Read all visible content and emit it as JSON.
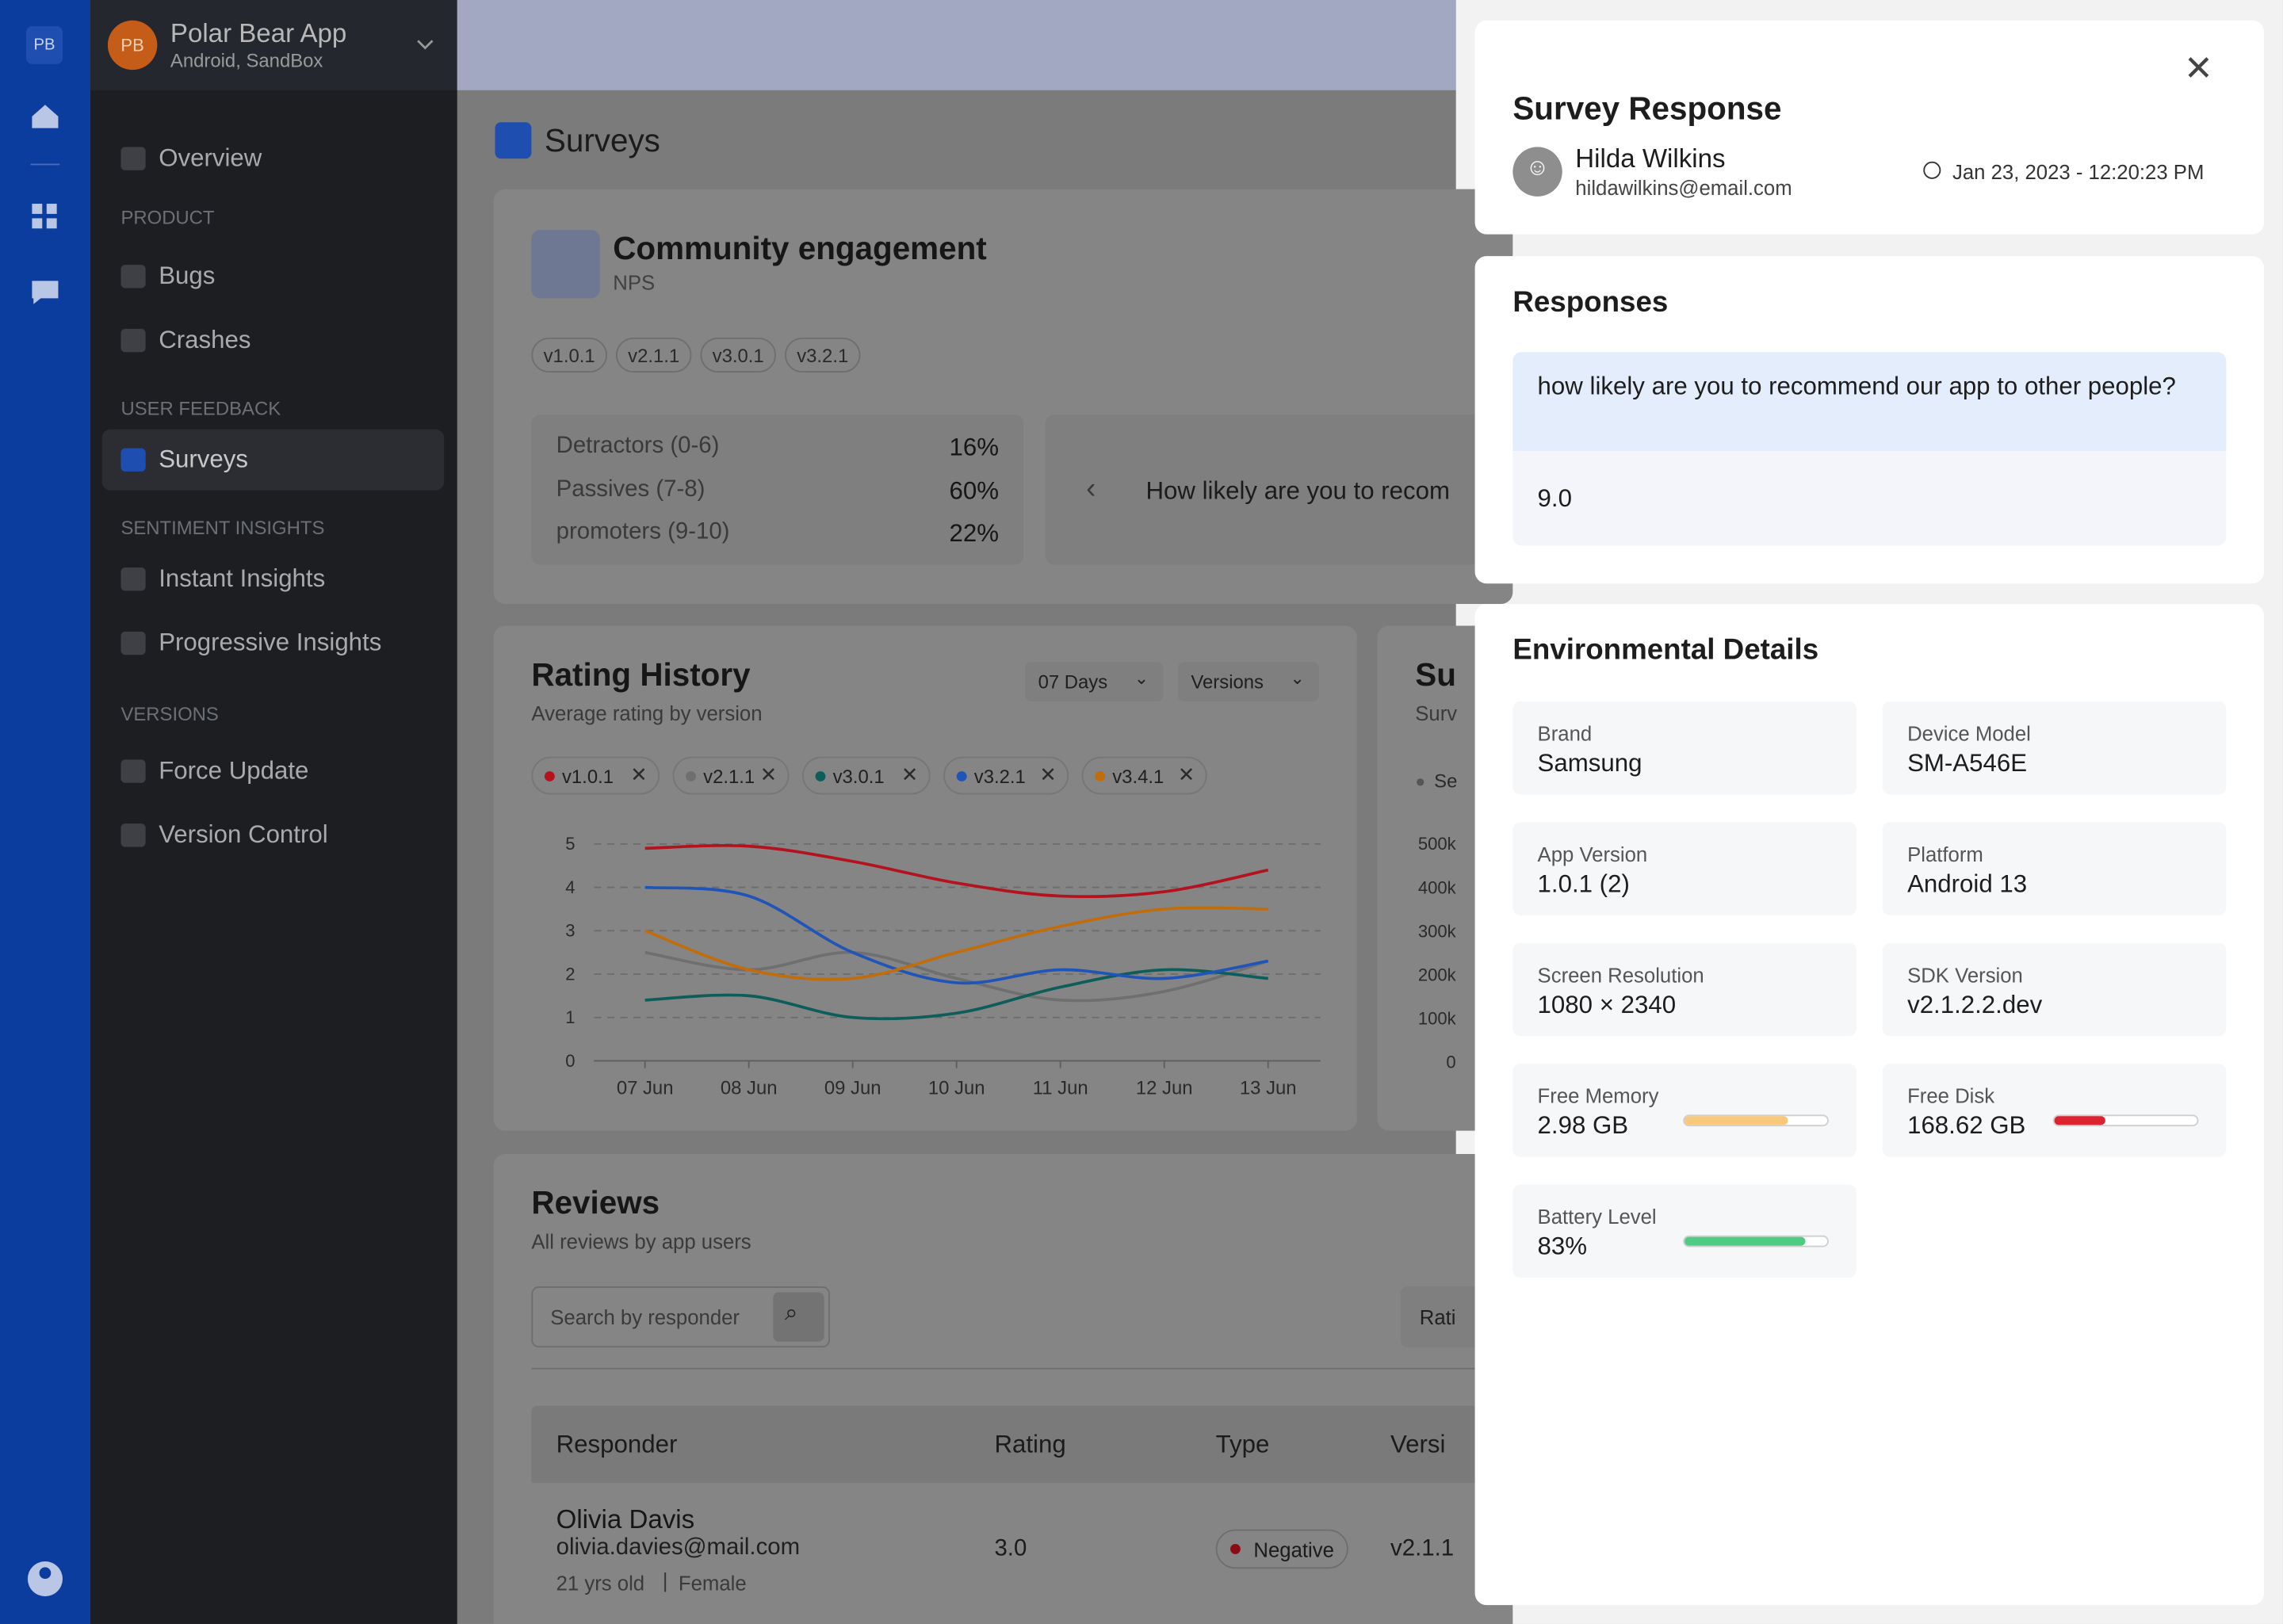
{
  "rail": {
    "logo": "PB"
  },
  "app": {
    "avatar": "PB",
    "name": "Polar Bear App",
    "sub": "Android, SandBox"
  },
  "nav": [
    {
      "kind": "item",
      "label": "Overview"
    },
    {
      "kind": "section",
      "label": "PRODUCT"
    },
    {
      "kind": "item",
      "label": "Bugs"
    },
    {
      "kind": "item",
      "label": "Crashes"
    },
    {
      "kind": "section",
      "label": "USER FEEDBACK"
    },
    {
      "kind": "active",
      "label": "Surveys"
    },
    {
      "kind": "section",
      "label": "SENTIMENT INSIGHTS"
    },
    {
      "kind": "item",
      "label": "Instant Insights"
    },
    {
      "kind": "item",
      "label": "Progressive Insights"
    },
    {
      "kind": "section",
      "label": "VERSIONS"
    },
    {
      "kind": "item",
      "label": "Force Update"
    },
    {
      "kind": "item",
      "label": "Version Control"
    }
  ],
  "page": {
    "title": "Surveys"
  },
  "survey": {
    "title": "Community engagement",
    "type": "NPS",
    "versions": [
      "v1.0.1",
      "v2.1.1",
      "v3.0.1",
      "v3.2.1"
    ],
    "stats": [
      {
        "label": "Detractors (0-6)",
        "value": "16%"
      },
      {
        "label": "Passives (7-8)",
        "value": "60%"
      },
      {
        "label": "promoters (9-10)",
        "value": "22%"
      }
    ],
    "question": "How likely are you to recom"
  },
  "rating_history": {
    "title": "Rating History",
    "subtitle": "Average rating by version",
    "filters": [
      "07 Days",
      "Versions"
    ],
    "x": [
      "07 Jun",
      "08 Jun",
      "09 Jun",
      "10 Jun",
      "11 Jun",
      "12 Jun",
      "13 Jun"
    ],
    "ylim": [
      0,
      5
    ],
    "yticks": [
      0,
      1,
      2,
      3,
      4,
      5
    ],
    "series": [
      {
        "name": "v1.0.1",
        "color": "#b3121e",
        "values": [
          4.9,
          4.95,
          4.6,
          4.1,
          3.8,
          3.9,
          4.4
        ]
      },
      {
        "name": "v2.1.1",
        "color": "#6f6f6f",
        "values": [
          2.5,
          2.1,
          2.5,
          1.9,
          1.4,
          1.6,
          2.3
        ]
      },
      {
        "name": "v3.0.1",
        "color": "#0d5d5a",
        "values": [
          1.4,
          1.5,
          1.0,
          1.1,
          1.7,
          2.1,
          1.9
        ]
      },
      {
        "name": "v3.2.1",
        "color": "#1f55b8",
        "values": [
          4.0,
          3.8,
          2.5,
          1.8,
          2.1,
          1.9,
          2.3
        ]
      },
      {
        "name": "v3.4.1",
        "color": "#c26d0c",
        "values": [
          3.0,
          2.1,
          1.9,
          2.5,
          3.1,
          3.5,
          3.5
        ]
      }
    ]
  },
  "summary": {
    "title": "Su",
    "subtitle": "Surv",
    "legend": "Se",
    "yticks": [
      "500k",
      "400k",
      "300k",
      "200k",
      "100k",
      "0"
    ]
  },
  "reviews": {
    "title": "Reviews",
    "subtitle": "All reviews by app users",
    "search": "Search by responder",
    "filter": "Rati",
    "columns": [
      "Responder",
      "Rating",
      "Type",
      "Versi"
    ],
    "rows": [
      {
        "name": "Olivia Davis",
        "email": "olivia.davies@mail.com",
        "age": "21 yrs old",
        "gender": "Female",
        "rating": "3.0",
        "type": "Negative",
        "version": "v2.1.1"
      }
    ]
  },
  "panel": {
    "title": "Survey Response",
    "name": "Hilda Wilkins",
    "email": "hildawilkins@email.com",
    "date": "Jan 23, 2023 - 12:20:23 PM",
    "responses_title": "Responses",
    "question": "how likely are you to recommend our app to other people?",
    "answer": "9.0",
    "env_title": "Environmental Details",
    "details": [
      {
        "label": "Brand",
        "value": "Samsung"
      },
      {
        "label": "Device Model",
        "value": "SM-A546E"
      },
      {
        "label": "App Version",
        "value": "1.0.1 (2)"
      },
      {
        "label": "Platform",
        "value": "Android 13"
      },
      {
        "label": "Screen Resolution",
        "value": "1080 × 2340"
      },
      {
        "label": "SDK Version",
        "value": "v2.1.2.2.dev"
      },
      {
        "label": "Free Memory",
        "value": "2.98 GB",
        "bar": 71,
        "color": "#f8c97b"
      },
      {
        "label": "Free Disk",
        "value": "168.62 GB",
        "bar": 35,
        "color": "#dc2430"
      },
      {
        "label": "Battery Level",
        "value": "83%",
        "bar": 83,
        "color": "#4fcb84"
      }
    ]
  }
}
